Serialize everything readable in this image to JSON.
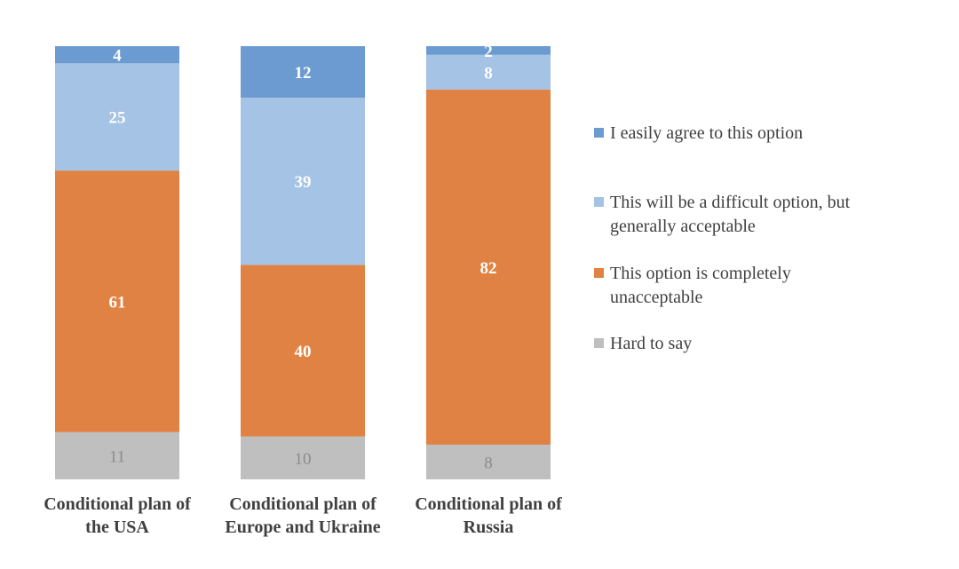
{
  "chart_data": {
    "type": "bar",
    "stacked": true,
    "normalized": true,
    "title": "",
    "xlabel": "",
    "ylabel": "",
    "ylim": [
      0,
      100
    ],
    "grid": false,
    "legend_position": "right",
    "categories": [
      [
        "Conditional plan of",
        "the USA"
      ],
      [
        "Conditional plan of",
        "Europe and Ukraine"
      ],
      [
        "Conditional plan of",
        "Russia"
      ]
    ],
    "series": [
      {
        "name": "Hard to say",
        "legend_lines": [
          "Hard to say"
        ],
        "color": "#bfbfbf",
        "label_color": "#8c8c8c",
        "label_bold": false,
        "values": [
          11,
          10,
          8
        ]
      },
      {
        "name": "This option is completely unacceptable",
        "legend_lines": [
          "This option is completely",
          "unacceptable"
        ],
        "color": "#e08243",
        "label_color": "#ffffff",
        "label_bold": true,
        "values": [
          61,
          40,
          82
        ]
      },
      {
        "name": "This will be a difficult option, but generally acceptable",
        "legend_lines": [
          "This will be a difficult option, but",
          "generally acceptable"
        ],
        "color": "#a4c3e5",
        "label_color": "#ffffff",
        "label_bold": true,
        "values": [
          25,
          39,
          8
        ]
      },
      {
        "name": "I easily agree to this option",
        "legend_lines": [
          "I easily agree to this option"
        ],
        "color": "#6b9bd1",
        "label_color": "#ffffff",
        "label_bold": true,
        "values": [
          4,
          12,
          2
        ]
      }
    ],
    "legend_order": [
      3,
      2,
      1,
      0
    ]
  }
}
